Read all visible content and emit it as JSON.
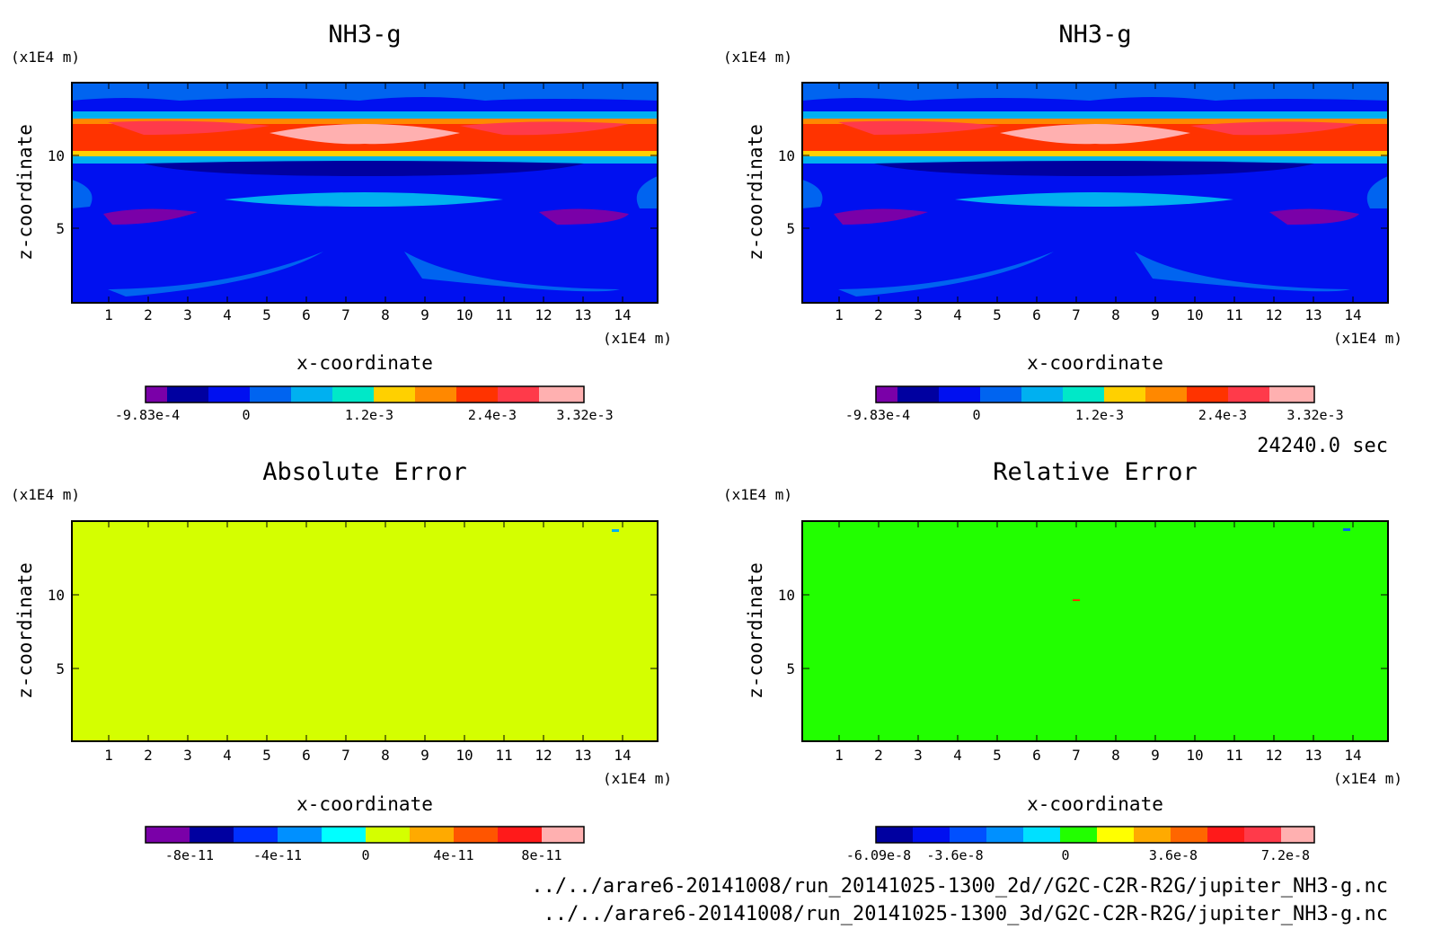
{
  "time_label": "24240.0 sec",
  "file_paths": [
    "../../arare6-20141008/run_20141025-1300_2d//G2C-C2R-R2G/jupiter_NH3-g.nc",
    "../../arare6-20141008/run_20141025-1300_3d/G2C-C2R-R2G/jupiter_NH3-g.nc"
  ],
  "chart_data": [
    {
      "type": "heatmap",
      "title": "NH3-g",
      "xlabel": "x-coordinate",
      "ylabel": "z-coordinate",
      "x_unit": "(x1E4 m)",
      "y_unit": "(x1E4 m)",
      "x_ticks": [
        "1",
        "2",
        "3",
        "4",
        "5",
        "6",
        "7",
        "8",
        "9",
        "10",
        "11",
        "12",
        "13",
        "14"
      ],
      "y_ticks": [
        "5",
        "10"
      ],
      "xlim": [
        0,
        14.9
      ],
      "ylim": [
        0,
        14.9
      ],
      "colorbar": {
        "colors": [
          "#7a00a8",
          "#0000a0",
          "#0010f0",
          "#0064f0",
          "#00b0f0",
          "#00e8c8",
          "#ffd000",
          "#ff8800",
          "#ff3300",
          "#ff3a4a",
          "#ffb0b0"
        ],
        "tick_labels": [
          "-9.83e-4",
          "0",
          "1.2e-3",
          "2.4e-3",
          "3.32e-3"
        ]
      }
    },
    {
      "type": "heatmap",
      "title": "NH3-g",
      "xlabel": "x-coordinate",
      "ylabel": "z-coordinate",
      "x_unit": "(x1E4 m)",
      "y_unit": "(x1E4 m)",
      "x_ticks": [
        "1",
        "2",
        "3",
        "4",
        "5",
        "6",
        "7",
        "8",
        "9",
        "10",
        "11",
        "12",
        "13",
        "14"
      ],
      "y_ticks": [
        "5",
        "10"
      ],
      "xlim": [
        0,
        14.9
      ],
      "ylim": [
        0,
        14.9
      ],
      "colorbar": {
        "colors": [
          "#7a00a8",
          "#0000a0",
          "#0010f0",
          "#0064f0",
          "#00b0f0",
          "#00e8c8",
          "#ffd000",
          "#ff8800",
          "#ff3300",
          "#ff3a4a",
          "#ffb0b0"
        ],
        "tick_labels": [
          "-9.83e-4",
          "0",
          "1.2e-3",
          "2.4e-3",
          "3.32e-3"
        ]
      }
    },
    {
      "type": "heatmap",
      "title": "Absolute Error",
      "xlabel": "x-coordinate",
      "ylabel": "z-coordinate",
      "x_unit": "(x1E4 m)",
      "y_unit": "(x1E4 m)",
      "x_ticks": [
        "1",
        "2",
        "3",
        "4",
        "5",
        "6",
        "7",
        "8",
        "9",
        "10",
        "11",
        "12",
        "13",
        "14"
      ],
      "y_ticks": [
        "5",
        "10"
      ],
      "xlim": [
        0,
        14.9
      ],
      "ylim": [
        0,
        14.9
      ],
      "field_color": "#d4ff00",
      "colorbar": {
        "colors": [
          "#7a00a8",
          "#0000a0",
          "#0030ff",
          "#0090ff",
          "#00ffff",
          "#d4ff00",
          "#ffaa00",
          "#ff5500",
          "#ff1a1a",
          "#ffb0b0"
        ],
        "tick_labels": [
          "-8e-11",
          "-4e-11",
          "0",
          "4e-11",
          "8e-11"
        ]
      }
    },
    {
      "type": "heatmap",
      "title": "Relative Error",
      "xlabel": "x-coordinate",
      "ylabel": "z-coordinate",
      "x_unit": "(x1E4 m)",
      "y_unit": "(x1E4 m)",
      "x_ticks": [
        "1",
        "2",
        "3",
        "4",
        "5",
        "6",
        "7",
        "8",
        "9",
        "10",
        "11",
        "12",
        "13",
        "14"
      ],
      "y_ticks": [
        "5",
        "10"
      ],
      "xlim": [
        0,
        14.9
      ],
      "ylim": [
        0,
        14.9
      ],
      "field_color": "#22ff00",
      "colorbar": {
        "colors": [
          "#0000a0",
          "#0010f0",
          "#0050ff",
          "#0090ff",
          "#00e0ff",
          "#22ff00",
          "#ffff00",
          "#ffaa00",
          "#ff6600",
          "#ff1a1a",
          "#ff3a4a",
          "#ffb0b0"
        ],
        "tick_labels": [
          "-6.09e-8",
          "-3.6e-8",
          "0",
          "3.6e-8",
          "7.2e-8"
        ]
      }
    }
  ]
}
